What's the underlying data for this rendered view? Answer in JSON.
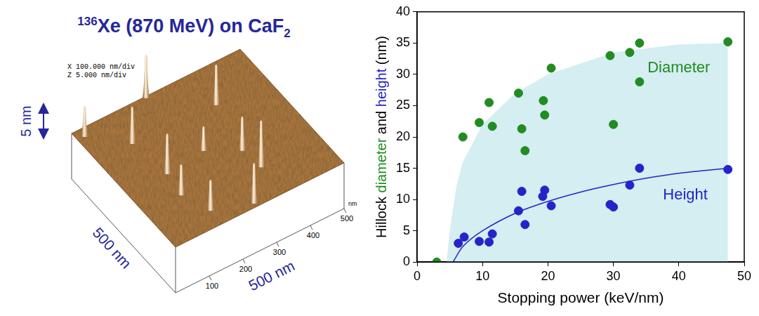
{
  "afm_image": {
    "title_parts": [
      {
        "text": "136",
        "style": "sup"
      },
      {
        "text": "Xe (870 MeV) on CaF"
      },
      {
        "text": "2",
        "style": "sub"
      }
    ],
    "scale_text": [
      "X 100.000 nm/div",
      "Z 5.000 nm/div"
    ],
    "z_scale_bar": {
      "value": 5,
      "label": "5 nm"
    },
    "extent_labels": [
      "500 nm",
      "500 nm"
    ],
    "xy_range": [
      0,
      500
    ],
    "axis_ticks": [
      100,
      200,
      300,
      400,
      500
    ],
    "axis_unit": "nm",
    "hillocks": [
      {
        "x": 20,
        "y": 470,
        "height": 5
      },
      {
        "x": 217,
        "y": 494,
        "height": 7
      },
      {
        "x": 104,
        "y": 377,
        "height": 6
      },
      {
        "x": 119,
        "y": 233,
        "height": 6.5
      },
      {
        "x": 108,
        "y": 148,
        "height": 5
      },
      {
        "x": 347,
        "y": 367,
        "height": 6.5
      },
      {
        "x": 315,
        "y": 190,
        "height": 5.5
      },
      {
        "x": 323,
        "y": 112,
        "height": 7.5
      },
      {
        "x": 241,
        "y": 13,
        "height": 6.5
      },
      {
        "x": 139,
        "y": 57,
        "height": 5
      },
      {
        "x": 236,
        "y": 248,
        "height": 4
      }
    ]
  },
  "chart_data": {
    "type": "scatter",
    "xlabel": "Stopping power (keV/nm)",
    "ylabel": "Hillock diameter and height (nm)",
    "xlim": [
      0,
      50
    ],
    "xticks": [
      0,
      10,
      20,
      30,
      40,
      50
    ],
    "ylim": [
      0,
      40
    ],
    "yticks": [
      0,
      5,
      10,
      15,
      20,
      25,
      30,
      35,
      40
    ],
    "grid": false,
    "series": [
      {
        "name": "Diameter",
        "color": "#228b22",
        "marker": "circle",
        "x": [
          3,
          7,
          9.5,
          11,
          11.5,
          15.5,
          16,
          16.5,
          19.3,
          19.5,
          20.5,
          29.5,
          30,
          32.5,
          34,
          34,
          47.5
        ],
        "values": [
          0,
          20,
          22.3,
          25.5,
          21.7,
          27,
          21.3,
          17.8,
          25.8,
          23.5,
          31,
          33,
          22,
          33.5,
          35,
          28.8,
          35.2
        ],
        "band_x": [
          4.5,
          5,
          6,
          7,
          10,
          15,
          20,
          30,
          40,
          47.5
        ],
        "band_values": [
          0,
          5,
          12,
          16,
          22,
          27,
          30,
          33.5,
          34.8,
          35
        ]
      },
      {
        "name": "Height",
        "color": "#2424c8",
        "marker": "circle",
        "x": [
          6.3,
          7.2,
          9.5,
          11,
          11.5,
          15.5,
          16,
          16.5,
          19.2,
          19.5,
          20.5,
          29.5,
          30,
          32.5,
          34,
          47.5
        ],
        "values": [
          3,
          4,
          3.3,
          3.2,
          4.5,
          8.2,
          11.3,
          6,
          10.5,
          11.5,
          9,
          9.2,
          8.8,
          12.3,
          15,
          14.8
        ],
        "fit_x": [
          5.5,
          7,
          10,
          15,
          20,
          25,
          30,
          35,
          40,
          47.5
        ],
        "fit_values": [
          0,
          2.5,
          5,
          7.8,
          9.7,
          11.2,
          12.4,
          13.4,
          14.2,
          15
        ]
      }
    ],
    "annotations": [
      {
        "text": "Diameter",
        "x": 40,
        "y": 31,
        "color": "#228b22"
      },
      {
        "text": "Height",
        "x": 41,
        "y": 10.7,
        "color": "#2424c8"
      }
    ]
  }
}
